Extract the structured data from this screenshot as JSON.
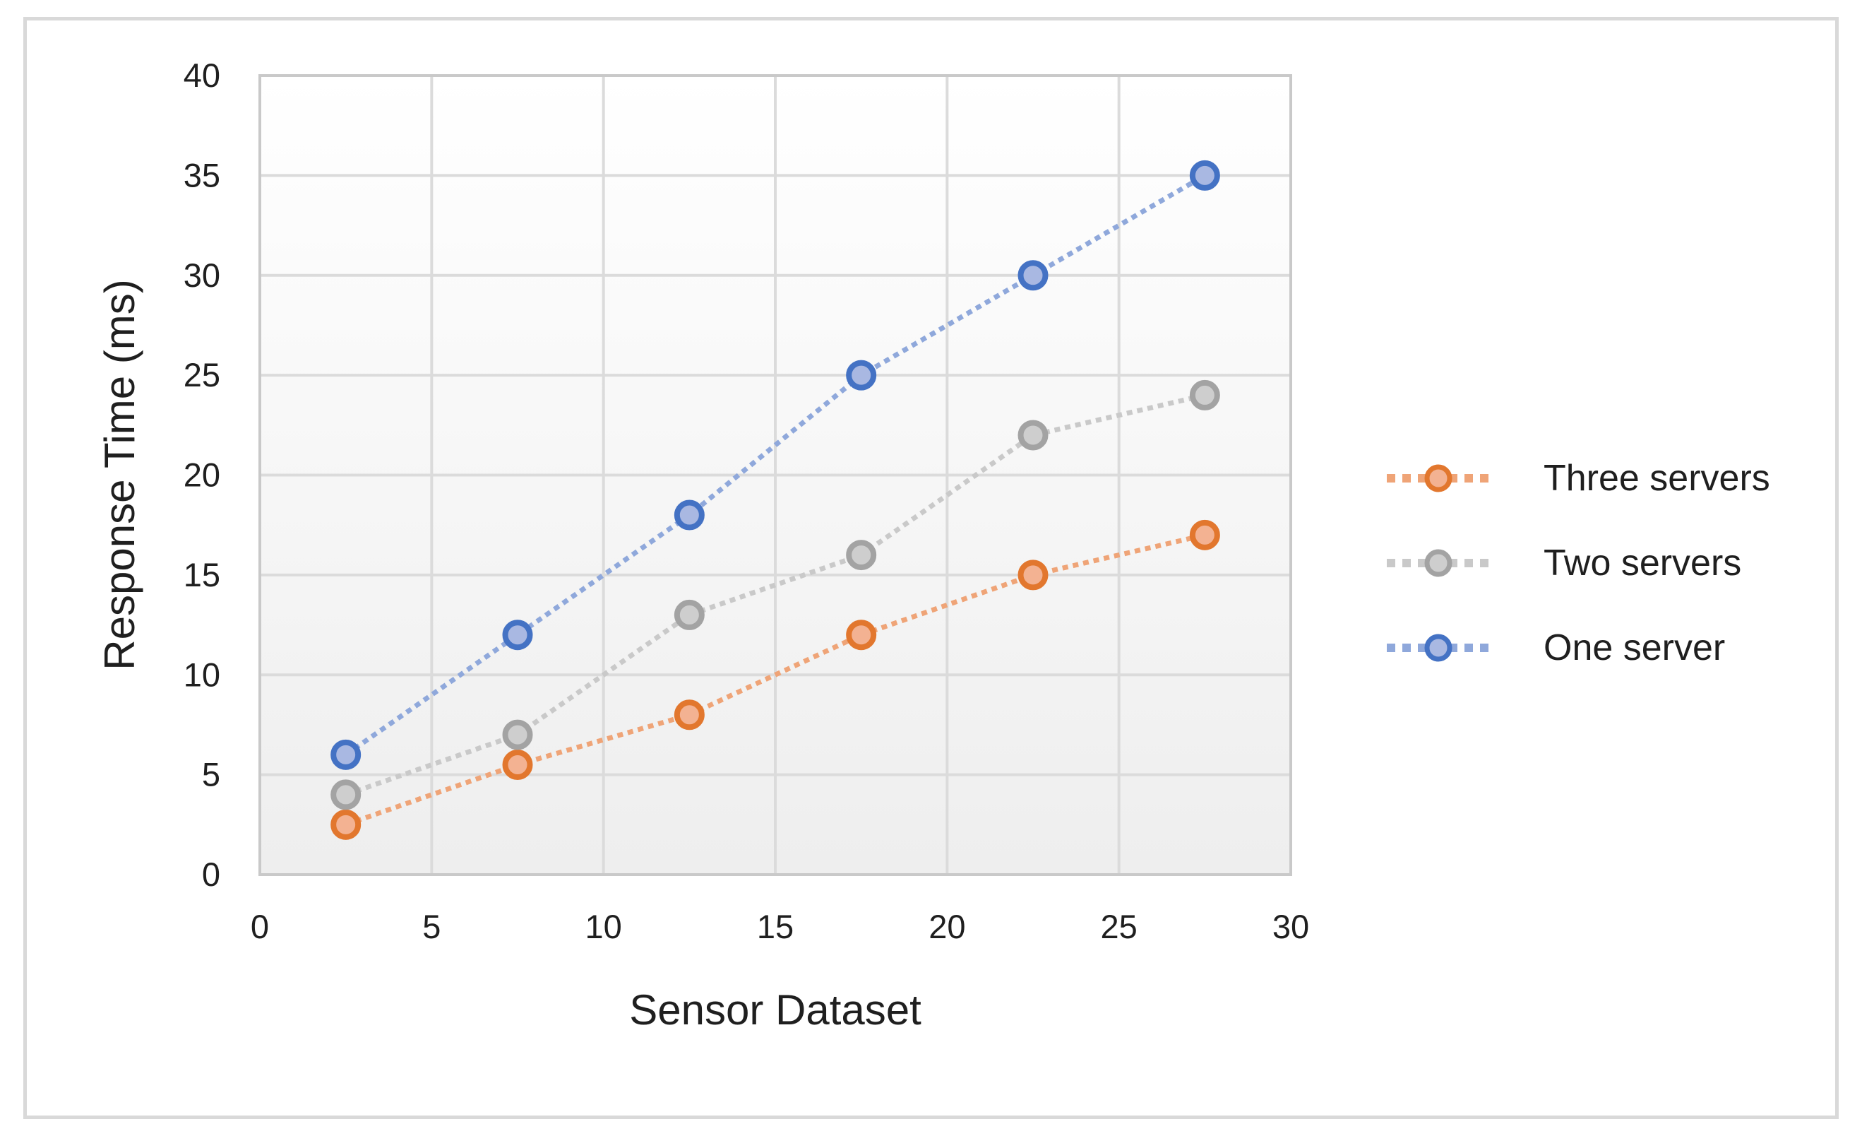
{
  "chart_data": {
    "type": "line",
    "title": "",
    "x": [
      2.5,
      7.5,
      12.5,
      17.5,
      22.5,
      27.5
    ],
    "series": [
      {
        "name": "Three servers",
        "values": [
          2.5,
          5.5,
          8,
          12,
          15,
          17
        ],
        "line_color": "#EFA477",
        "marker_stroke": "#E2772E",
        "marker_fill": "#F3B292"
      },
      {
        "name": "Two servers",
        "values": [
          4,
          7,
          13,
          16,
          22,
          24
        ],
        "line_color": "#C9C9C9",
        "marker_stroke": "#A3A3A3",
        "marker_fill": "#CECECE"
      },
      {
        "name": "One server",
        "values": [
          6,
          12,
          18,
          25,
          30,
          35
        ],
        "line_color": "#8FA8DB",
        "marker_stroke": "#4472C4",
        "marker_fill": "#A9B8E2"
      }
    ],
    "xlabel": "Sensor Dataset",
    "ylabel": "Response Time (ms)",
    "xlim": [
      0,
      30
    ],
    "ylim": [
      0,
      40
    ],
    "xticks": [
      0,
      5,
      10,
      15,
      20,
      25,
      30
    ],
    "yticks": [
      0,
      5,
      10,
      15,
      20,
      25,
      30,
      35,
      40
    ],
    "grid": true,
    "line_style": "dotted",
    "legend_position": "right",
    "legend_order": [
      "Three servers",
      "Two servers",
      "One server"
    ]
  },
  "colors": {
    "frame_border": "#D9D9D9",
    "gridline": "#DBDBDB",
    "plot_border": "#C9C9C9",
    "plot_bg_top": "#FFFFFF",
    "plot_bg_bottom": "#EEEEEE",
    "text": "#1F1F1F"
  }
}
